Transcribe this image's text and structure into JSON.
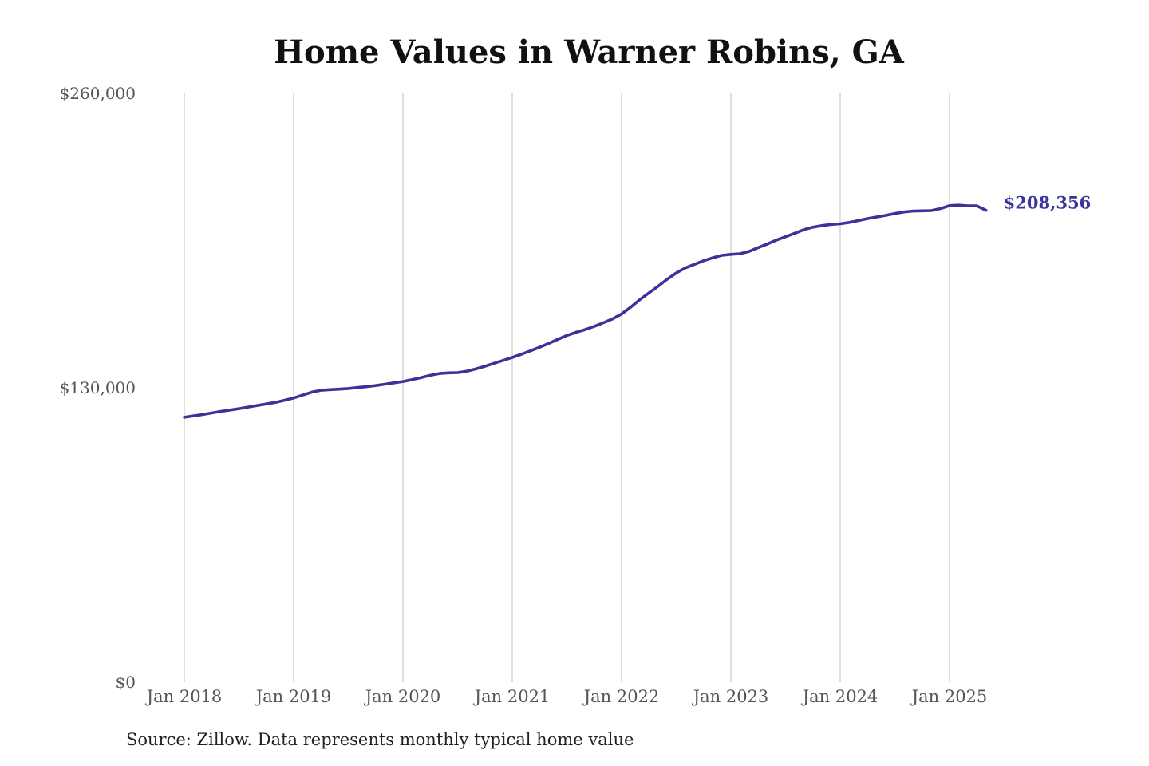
{
  "chart_data": {
    "type": "line",
    "title": "Home Values in Warner Robins, GA",
    "xlabel": "",
    "ylabel": "",
    "ylim": [
      0,
      260000
    ],
    "xlim": [
      "2018-01",
      "2025-05"
    ],
    "x_tick_labels": [
      "Jan 2018",
      "Jan 2019",
      "Jan 2020",
      "Jan 2021",
      "Jan 2022",
      "Jan 2023",
      "Jan 2024",
      "Jan 2025"
    ],
    "y_tick_labels": [
      "$0",
      "$130,000",
      "$260,000"
    ],
    "y_tick_values": [
      0,
      130000,
      260000
    ],
    "grid": "vertical",
    "legend": "none",
    "line_color": "#3a3399",
    "end_label": "$208,356",
    "series": [
      {
        "x": [
          "2018-01",
          "2018-02",
          "2018-03",
          "2018-04",
          "2018-05",
          "2018-06",
          "2018-07",
          "2018-08",
          "2018-09",
          "2018-10",
          "2018-11",
          "2018-12",
          "2019-01",
          "2019-02",
          "2019-03",
          "2019-04",
          "2019-05",
          "2019-06",
          "2019-07",
          "2019-08",
          "2019-09",
          "2019-10",
          "2019-11",
          "2019-12",
          "2020-01",
          "2020-02",
          "2020-03",
          "2020-04",
          "2020-05",
          "2020-06",
          "2020-07",
          "2020-08",
          "2020-09",
          "2020-10",
          "2020-11",
          "2020-12",
          "2021-01",
          "2021-02",
          "2021-03",
          "2021-04",
          "2021-05",
          "2021-06",
          "2021-07",
          "2021-08",
          "2021-09",
          "2021-10",
          "2021-11",
          "2021-12",
          "2022-01",
          "2022-02",
          "2022-03",
          "2022-04",
          "2022-05",
          "2022-06",
          "2022-07",
          "2022-08",
          "2022-09",
          "2022-10",
          "2022-11",
          "2022-12",
          "2023-01",
          "2023-02",
          "2023-03",
          "2023-04",
          "2023-05",
          "2023-06",
          "2023-07",
          "2023-08",
          "2023-09",
          "2023-10",
          "2023-11",
          "2023-12",
          "2024-01",
          "2024-02",
          "2024-03",
          "2024-04",
          "2024-05",
          "2024-06",
          "2024-07",
          "2024-08",
          "2024-09",
          "2024-10",
          "2024-11",
          "2024-12",
          "2025-01",
          "2025-02",
          "2025-03",
          "2025-04",
          "2025-05"
        ],
        "values": [
          117000,
          117600,
          118200,
          118900,
          119600,
          120200,
          120800,
          121500,
          122200,
          122900,
          123600,
          124500,
          125500,
          126800,
          128100,
          128900,
          129200,
          129400,
          129700,
          130100,
          130500,
          131000,
          131600,
          132200,
          132800,
          133600,
          134500,
          135500,
          136300,
          136600,
          136700,
          137300,
          138300,
          139500,
          140800,
          142100,
          143400,
          144800,
          146300,
          147900,
          149600,
          151400,
          153100,
          154500,
          155700,
          157100,
          158700,
          160400,
          162600,
          165600,
          168900,
          171900,
          174800,
          177900,
          180700,
          182900,
          184500,
          186100,
          187400,
          188500,
          188900,
          189200,
          190200,
          191900,
          193500,
          195200,
          196700,
          198200,
          199800,
          200900,
          201600,
          202100,
          202400,
          203000,
          203800,
          204700,
          205400,
          206100,
          206900,
          207600,
          208000,
          208100,
          208200,
          209100,
          210400,
          210600,
          210300,
          210300,
          208356
        ]
      }
    ]
  },
  "source_note": "Source: Zillow. Data represents monthly typical home value"
}
